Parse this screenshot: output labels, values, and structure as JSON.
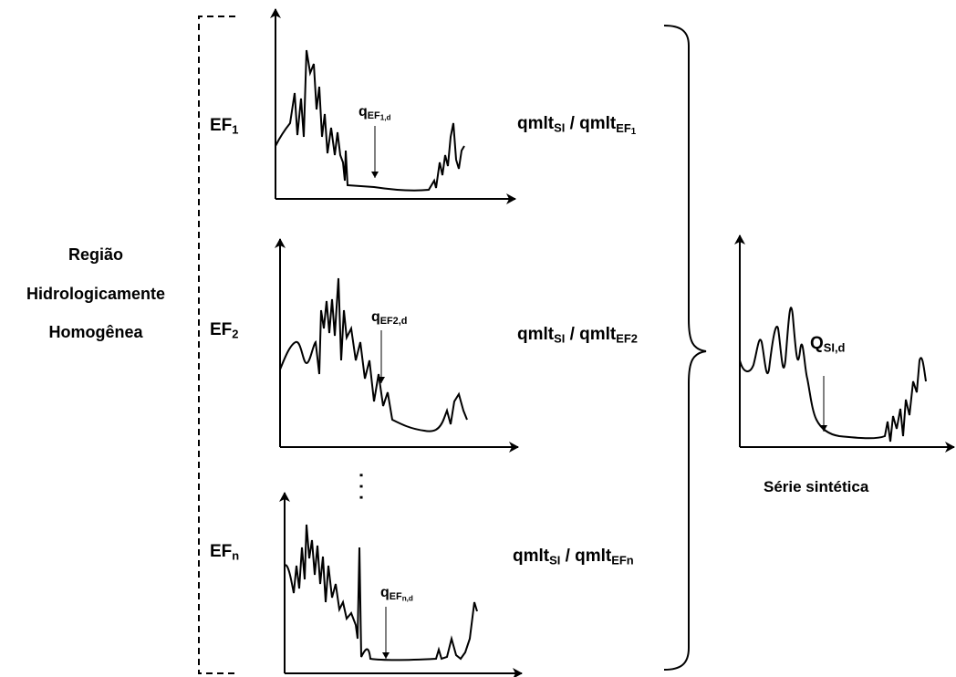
{
  "region": {
    "line1": "Região",
    "line2": "Hidrologicamente",
    "line3": "Homogênea"
  },
  "stations": [
    {
      "base": "EF",
      "sub": "1",
      "arrow_base": "q",
      "arrow_sub": "EF",
      "arrow_subsub": "1,d",
      "ratio_num_base": "qmlt",
      "ratio_num_sub": "SI",
      "ratio_sep": " / ",
      "ratio_den_base": "qmlt",
      "ratio_den_sub": "EF",
      "ratio_den_subsub": "1"
    },
    {
      "base": "EF",
      "sub": "2",
      "arrow_base": "q",
      "arrow_sub": "EF2,d",
      "arrow_subsub": "",
      "ratio_num_base": "qmlt",
      "ratio_num_sub": "SI",
      "ratio_sep": " / ",
      "ratio_den_base": "qmlt",
      "ratio_den_sub": "EF2",
      "ratio_den_subsub": ""
    },
    {
      "base": "EF",
      "sub": "n",
      "arrow_base": "q",
      "arrow_sub": "EF",
      "arrow_subsub": "n,d",
      "ratio_num_base": "qmlt",
      "ratio_num_sub": "SI",
      "ratio_sep": " / ",
      "ratio_den_base": "qmlt",
      "ratio_den_sub": "EFn",
      "ratio_den_subsub": ""
    }
  ],
  "ellipsis": "· · ·",
  "synthetic": {
    "arrow_base": "Q",
    "arrow_sub": "SI,d",
    "caption": "Série sintética"
  }
}
